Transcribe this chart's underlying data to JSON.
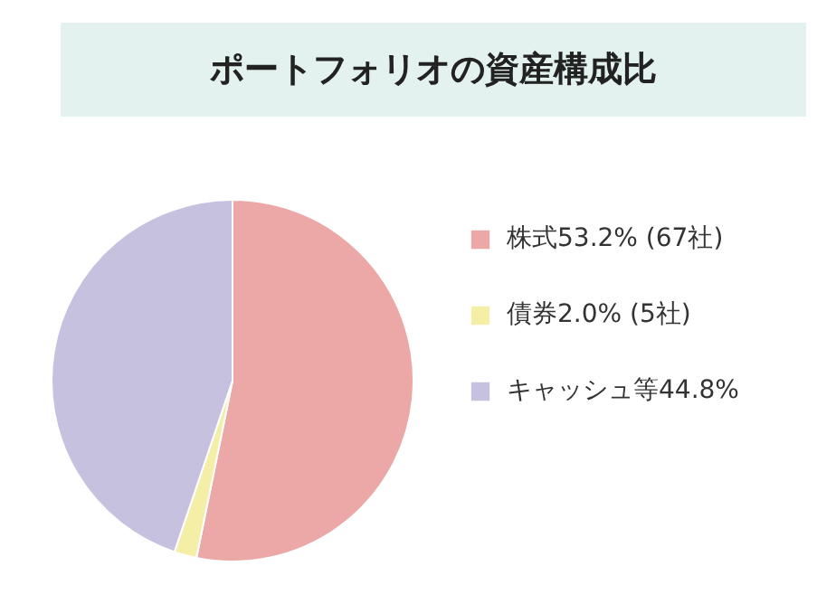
{
  "chart_data": {
    "type": "pie",
    "title": "ポートフォリオの資産構成比",
    "categories": [
      "株式53.2% (67社)",
      "債券2.0% (5社)",
      "キャッシュ等44.8%"
    ],
    "values": [
      53.2,
      2.0,
      44.8
    ],
    "colors": [
      "#eca7a7",
      "#f4eea6",
      "#c6c1de"
    ],
    "legend": "right"
  }
}
